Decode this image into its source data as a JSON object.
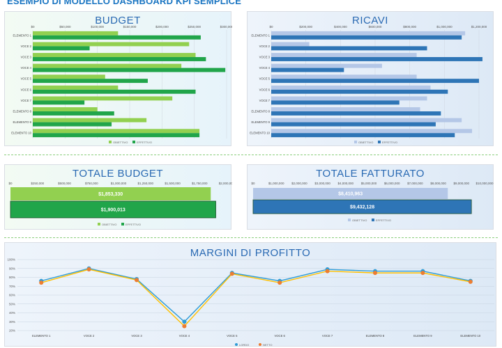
{
  "page_title": "ESEMPIO DI MODELLO DASHBOARD KPI SEMPLICE",
  "chart_data": [
    {
      "id": "budget",
      "type": "bar",
      "orientation": "horizontal",
      "title": "BUDGET",
      "categories": [
        "ELEMENTO 1",
        "VOCE 2",
        "VOCE 3",
        "VOCE 4",
        "VOCE 5",
        "VOCE 6",
        "VOCE 7",
        "ELEMENTO 8",
        "ELEMENTO 9",
        "ELEMENTO 10"
      ],
      "series": [
        {
          "name": "OBIETTIVO",
          "color": "#92d050",
          "values": [
            132000,
            242000,
            252000,
            230000,
            112000,
            132000,
            216000,
            100000,
            176000,
            258000
          ]
        },
        {
          "name": "EFFETTIVO",
          "color": "#21a54a",
          "values": [
            260000,
            88000,
            268000,
            298000,
            178000,
            252000,
            80000,
            126000,
            122000,
            258000
          ]
        }
      ],
      "xlim": [
        0,
        300000
      ],
      "xticks": [
        "$0",
        "$50,000",
        "$100,000",
        "$150,000",
        "$200,000",
        "$250,000",
        "$300,000"
      ],
      "legend": "bottom"
    },
    {
      "id": "ricavi",
      "type": "bar",
      "orientation": "horizontal",
      "title": "RICAVI",
      "categories": [
        "ELEMENTO 1",
        "VOCE 2",
        "VOCE 3",
        "VOCE 4",
        "VOCE 5",
        "VOCE 6",
        "VOCE 7",
        "ELEMENTO 8",
        "ELEMENTO 9",
        "ELEMENTO 10"
      ],
      "series": [
        {
          "name": "OBIETTIVO",
          "color": "#b4c7e7",
          "values": [
            1120000,
            220000,
            840000,
            640000,
            840000,
            920000,
            900000,
            860000,
            1100000,
            1160000
          ]
        },
        {
          "name": "EFFETTIVO",
          "color": "#2e75b6",
          "values": [
            1100000,
            900000,
            1220000,
            420000,
            1200000,
            1020000,
            740000,
            980000,
            950000,
            1060000
          ]
        }
      ],
      "xlim": [
        0,
        1200000
      ],
      "xticks": [
        "$0",
        "$200,000",
        "$400,000",
        "$600,000",
        "$800,000",
        "$1,000,000",
        "$1,200,000"
      ],
      "legend": "bottom"
    },
    {
      "id": "totale_budget",
      "type": "bar",
      "orientation": "horizontal",
      "title": "TOTALE BUDGET",
      "series": [
        {
          "name": "OBIETTIVO",
          "color": "#92d050",
          "value": 1853330,
          "label": "$1,853,330"
        },
        {
          "name": "EFFETTIVO",
          "color": "#21a54a",
          "value": 1900013,
          "label": "$1,900,013"
        }
      ],
      "xlim": [
        0,
        2000000
      ],
      "xticks": [
        "$0",
        "$250,000",
        "$500,000",
        "$750,000",
        "$1,000,000",
        "$1,250,000",
        "$1,500,000",
        "$1,750,000",
        "$2,000,000"
      ],
      "legend": "bottom"
    },
    {
      "id": "totale_fatturato",
      "type": "bar",
      "orientation": "horizontal",
      "title": "TOTALE FATTURATO",
      "series": [
        {
          "name": "OBIETTIVO",
          "color": "#b4c7e7",
          "value": 8410963,
          "label": "$8,410,963"
        },
        {
          "name": "EFFETTIVO",
          "color": "#2e75b6",
          "value": 9432128,
          "label": "$9,432,128"
        }
      ],
      "xlim": [
        0,
        10000000
      ],
      "xticks": [
        "$0",
        "$1,000,000",
        "$2,000,000",
        "$3,000,000",
        "$4,000,000",
        "$5,000,000",
        "$6,000,000",
        "$7,000,000",
        "$8,000,000",
        "$9,000,000",
        "$10,000,000"
      ],
      "legend": "bottom"
    },
    {
      "id": "margini",
      "type": "line",
      "title": "MARGINI DI PROFITTO",
      "categories": [
        "ELEMENTO 1",
        "VOCE 2",
        "VOCE 3",
        "VOCE 4",
        "VOCE 5",
        "VOCE 6",
        "VOCE 7",
        "ELEMENTO 8",
        "ELEMENTO 9",
        "ELEMENTO 10"
      ],
      "series": [
        {
          "name": "LORDO",
          "color": "#2e9bd6",
          "marker": "#2e9bd6",
          "values": [
            76,
            90,
            78,
            30,
            85,
            76,
            89,
            87,
            87,
            76
          ]
        },
        {
          "name": "NETTO",
          "color": "#ffc000",
          "marker": "#ed7d31",
          "values": [
            74,
            89,
            77,
            25,
            84,
            74,
            87,
            85,
            85,
            75
          ]
        }
      ],
      "ylim": [
        20,
        100
      ],
      "yticks": [
        "20%",
        "30%",
        "40%",
        "50%",
        "60%",
        "70%",
        "80%",
        "90%",
        "100%"
      ],
      "legend": "bottom"
    }
  ]
}
